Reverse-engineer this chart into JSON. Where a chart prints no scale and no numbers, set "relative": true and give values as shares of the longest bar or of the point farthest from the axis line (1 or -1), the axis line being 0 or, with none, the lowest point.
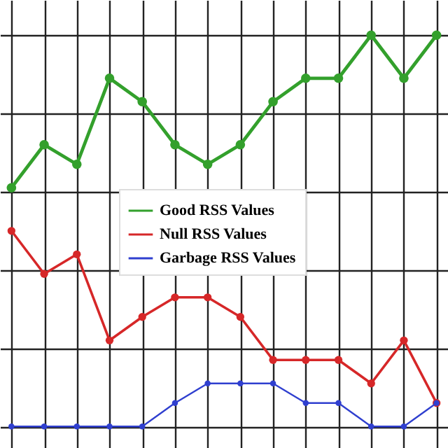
{
  "chart_data": {
    "type": "line",
    "relative": true,
    "grid": true,
    "legend": "center",
    "marker": "circle",
    "line_style": "solid",
    "categories": [
      null,
      null,
      null,
      null,
      null,
      null,
      null,
      null,
      null,
      null,
      null,
      null,
      null,
      null
    ],
    "series": [
      {
        "name": "Good RSS Values",
        "color": "#33a02c",
        "values": [
          0.61,
          0.72,
          0.67,
          0.89,
          0.83,
          0.72,
          0.67,
          0.72,
          0.83,
          0.89,
          0.89,
          1,
          0.89,
          1
        ]
      },
      {
        "name": "Null RSS Values",
        "color": "#d62728",
        "values": [
          0.5,
          0.39,
          0.44,
          0.22,
          0.28,
          0.33,
          0.33,
          0.28,
          0.17,
          0.17,
          0.17,
          0.11,
          0.22,
          0.06
        ]
      },
      {
        "name": "Garbage RSS Values",
        "color": "#2f3fcf",
        "values": [
          0,
          0,
          0,
          0,
          0,
          0.06,
          0.11,
          0.11,
          0.11,
          0.06,
          0.06,
          0,
          0,
          0.06
        ]
      }
    ]
  }
}
